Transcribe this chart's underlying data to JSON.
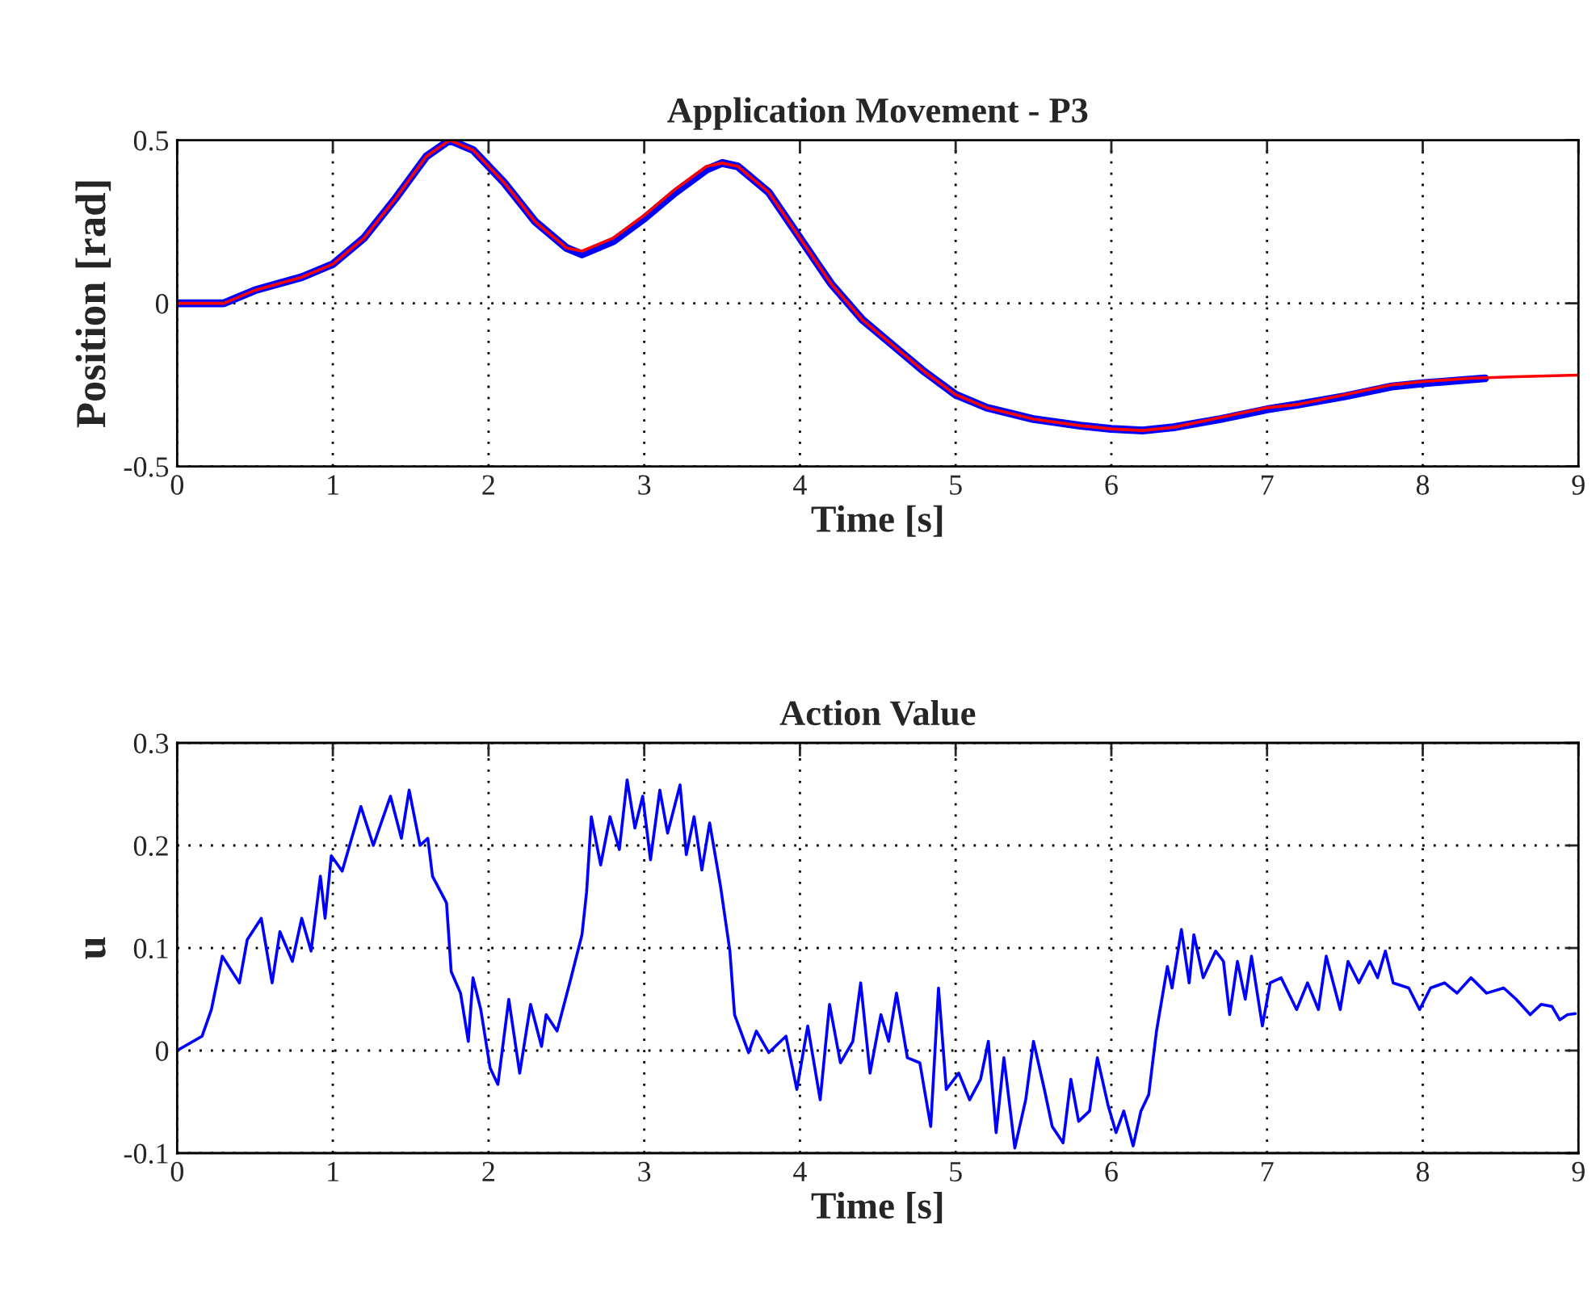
{
  "chart_data": [
    {
      "type": "line",
      "title": "Application Movement - P3",
      "xlabel": "Time [s]",
      "ylabel": "Position [rad]",
      "xlim": [
        0,
        9
      ],
      "ylim": [
        -0.5,
        0.5
      ],
      "xticks": [
        0,
        1,
        2,
        3,
        4,
        5,
        6,
        7,
        8,
        9
      ],
      "yticks": [
        -0.5,
        0,
        0.5
      ],
      "grid": true,
      "line_style": "solid",
      "series": [
        {
          "color": "#0000ff",
          "x": [
            0,
            0.3,
            0.5,
            0.8,
            1.0,
            1.2,
            1.4,
            1.6,
            1.75,
            1.9,
            2.1,
            2.3,
            2.5,
            2.6,
            2.8,
            3.0,
            3.2,
            3.4,
            3.5,
            3.6,
            3.8,
            4.0,
            4.2,
            4.4,
            4.6,
            4.8,
            5.0,
            5.2,
            5.5,
            5.8,
            6.0,
            6.2,
            6.4,
            6.7,
            7.0,
            7.2,
            7.5,
            7.8,
            8.0,
            8.4
          ],
          "values": [
            0,
            0,
            0.04,
            0.08,
            0.12,
            0.2,
            0.32,
            0.45,
            0.5,
            0.47,
            0.37,
            0.25,
            0.17,
            0.15,
            0.19,
            0.26,
            0.34,
            0.41,
            0.43,
            0.42,
            0.34,
            0.2,
            0.06,
            -0.05,
            -0.13,
            -0.21,
            -0.28,
            -0.32,
            -0.355,
            -0.375,
            -0.385,
            -0.39,
            -0.38,
            -0.355,
            -0.325,
            -0.31,
            -0.285,
            -0.255,
            -0.245,
            -0.23
          ]
        },
        {
          "color": "#ff0000",
          "x": [
            0,
            0.3,
            0.5,
            0.8,
            1.0,
            1.2,
            1.4,
            1.6,
            1.75,
            1.9,
            2.1,
            2.3,
            2.5,
            2.6,
            2.8,
            3.0,
            3.2,
            3.4,
            3.5,
            3.6,
            3.8,
            4.0,
            4.2,
            4.4,
            4.6,
            4.8,
            5.0,
            5.2,
            5.5,
            5.8,
            6.0,
            6.2,
            6.4,
            6.7,
            7.0,
            7.2,
            7.5,
            7.8,
            8.0,
            8.3,
            8.6,
            9.0
          ],
          "values": [
            0,
            0,
            0.04,
            0.08,
            0.12,
            0.2,
            0.32,
            0.45,
            0.5,
            0.47,
            0.37,
            0.25,
            0.17,
            0.16,
            0.2,
            0.27,
            0.35,
            0.42,
            0.43,
            0.42,
            0.34,
            0.2,
            0.06,
            -0.05,
            -0.13,
            -0.21,
            -0.28,
            -0.32,
            -0.355,
            -0.375,
            -0.385,
            -0.39,
            -0.38,
            -0.35,
            -0.32,
            -0.31,
            -0.28,
            -0.25,
            -0.24,
            -0.23,
            -0.225,
            -0.22
          ]
        }
      ]
    },
    {
      "type": "line",
      "title": "Action Value",
      "xlabel": "Time [s]",
      "ylabel": "u",
      "xlim": [
        0,
        9
      ],
      "ylim": [
        -0.1,
        0.3
      ],
      "xticks": [
        0,
        1,
        2,
        3,
        4,
        5,
        6,
        7,
        8,
        9
      ],
      "yticks": [
        -0.1,
        0,
        0.1,
        0.2,
        0.3
      ],
      "grid": true,
      "line_style": "solid",
      "series": [
        {
          "color": "#0000ff",
          "x": [
            0,
            0.16,
            0.22,
            0.29,
            0.4,
            0.45,
            0.54,
            0.61,
            0.66,
            0.74,
            0.8,
            0.86,
            0.92,
            0.95,
            0.99,
            1.06,
            1.18,
            1.26,
            1.37,
            1.44,
            1.49,
            1.56,
            1.61,
            1.64,
            1.73,
            1.76,
            1.82,
            1.87,
            1.9,
            1.95,
            2.01,
            2.06,
            2.13,
            2.2,
            2.27,
            2.34,
            2.37,
            2.44,
            2.53,
            2.6,
            2.63,
            2.66,
            2.72,
            2.78,
            2.84,
            2.89,
            2.94,
            2.99,
            3.04,
            3.1,
            3.15,
            3.23,
            3.27,
            3.32,
            3.37,
            3.42,
            3.49,
            3.55,
            3.58,
            3.67,
            3.72,
            3.8,
            3.91,
            3.98,
            4.05,
            4.13,
            4.19,
            4.26,
            4.34,
            4.39,
            4.45,
            4.52,
            4.57,
            4.62,
            4.69,
            4.77,
            4.84,
            4.89,
            4.94,
            5.02,
            5.09,
            5.16,
            5.21,
            5.26,
            5.31,
            5.38,
            5.45,
            5.5,
            5.57,
            5.62,
            5.69,
            5.74,
            5.79,
            5.86,
            5.91,
            5.98,
            6.03,
            6.08,
            6.14,
            6.19,
            6.24,
            6.29,
            6.36,
            6.39,
            6.45,
            6.5,
            6.53,
            6.59,
            6.67,
            6.72,
            6.76,
            6.81,
            6.86,
            6.9,
            6.97,
            7.02,
            7.09,
            7.19,
            7.26,
            7.33,
            7.38,
            7.47,
            7.52,
            7.59,
            7.66,
            7.71,
            7.76,
            7.81,
            7.91,
            7.98,
            8.05,
            8.14,
            8.22,
            8.31,
            8.41,
            8.52,
            8.6,
            8.69,
            8.76,
            8.83,
            8.88,
            8.93,
            8.98
          ],
          "values": [
            0,
            0.014,
            0.04,
            0.092,
            0.066,
            0.108,
            0.129,
            0.066,
            0.116,
            0.087,
            0.129,
            0.097,
            0.17,
            0.129,
            0.19,
            0.175,
            0.238,
            0.2,
            0.248,
            0.207,
            0.254,
            0.2,
            0.207,
            0.17,
            0.144,
            0.077,
            0.056,
            0.009,
            0.071,
            0.04,
            -0.017,
            -0.033,
            0.05,
            -0.022,
            0.045,
            0.004,
            0.035,
            0.019,
            0.071,
            0.113,
            0.155,
            0.228,
            0.181,
            0.228,
            0.196,
            0.264,
            0.217,
            0.248,
            0.186,
            0.254,
            0.212,
            0.259,
            0.191,
            0.228,
            0.176,
            0.222,
            0.16,
            0.097,
            0.035,
            -0.002,
            0.019,
            -0.002,
            0.014,
            -0.038,
            0.024,
            -0.048,
            0.045,
            -0.012,
            0.009,
            0.066,
            -0.022,
            0.035,
            0.009,
            0.056,
            -0.007,
            -0.012,
            -0.074,
            0.061,
            -0.038,
            -0.022,
            -0.048,
            -0.028,
            0.009,
            -0.08,
            -0.007,
            -0.095,
            -0.048,
            0.009,
            -0.038,
            -0.074,
            -0.09,
            -0.028,
            -0.069,
            -0.059,
            -0.007,
            -0.054,
            -0.08,
            -0.059,
            -0.093,
            -0.059,
            -0.043,
            0.019,
            0.082,
            0.061,
            0.118,
            0.066,
            0.113,
            0.071,
            0.097,
            0.087,
            0.035,
            0.087,
            0.05,
            0.092,
            0.024,
            0.066,
            0.071,
            0.04,
            0.066,
            0.04,
            0.092,
            0.04,
            0.087,
            0.066,
            0.087,
            0.071,
            0.097,
            0.066,
            0.061,
            0.04,
            0.061,
            0.066,
            0.056,
            0.071,
            0.056,
            0.061,
            0.05,
            0.035,
            0.045,
            0.043,
            0.03,
            0.035,
            0.036
          ]
        }
      ]
    }
  ]
}
